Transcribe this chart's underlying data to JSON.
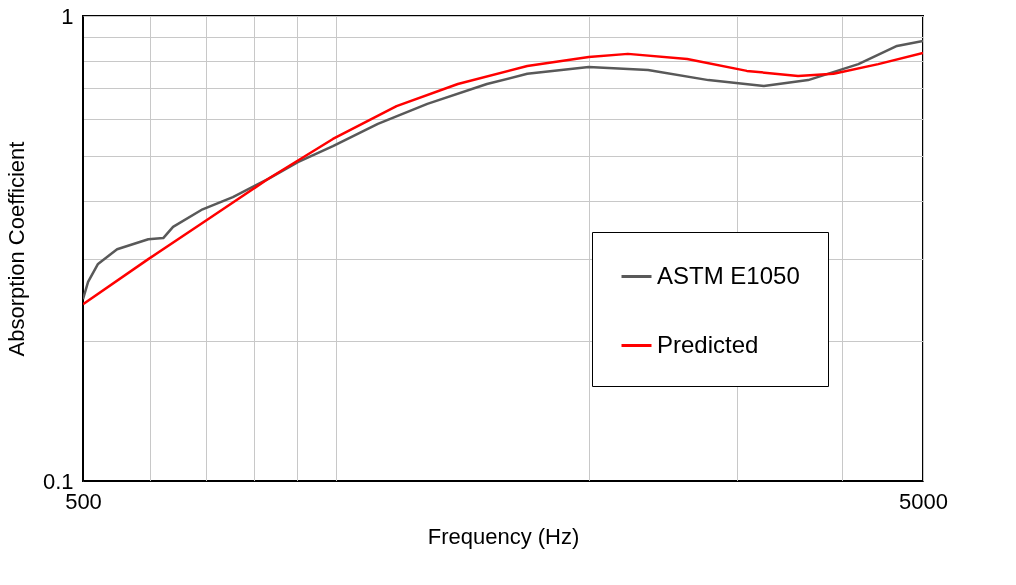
{
  "chart_data": {
    "type": "line",
    "xlabel": "Frequency (Hz)",
    "ylabel": "Absorption Coefficient",
    "log": "xy",
    "grid": true,
    "legend": "bottom right",
    "line_style": "solid",
    "marker": "none",
    "xlim": [
      500,
      5000
    ],
    "ylim": [
      0.1,
      1
    ],
    "xticks": [
      500,
      {
        "value": 600,
        "label": null
      },
      {
        "value": 700,
        "label": null
      },
      {
        "value": 800,
        "label": null
      },
      {
        "value": 900,
        "label": null
      },
      {
        "value": 1000,
        "label": null
      },
      {
        "value": 2000,
        "label": null
      },
      {
        "value": 3000,
        "label": null
      },
      {
        "value": 4000,
        "label": null
      },
      5000
    ],
    "yticks": [
      0.1,
      {
        "value": 0.2,
        "label": null
      },
      {
        "value": 0.3,
        "label": null
      },
      {
        "value": 0.4,
        "label": null
      },
      {
        "value": 0.5,
        "label": null
      },
      {
        "value": 0.6,
        "label": null
      },
      {
        "value": 0.7,
        "label": null
      },
      {
        "value": 0.8,
        "label": null
      },
      {
        "value": 0.9,
        "label": null
      },
      1
    ],
    "series": [
      {
        "name": "ASTM E1050",
        "color": "#595959",
        "x": [
          500,
          507,
          521,
          549,
          598,
          623,
          640,
          694,
          754,
          830,
          901,
          992,
          1122,
          1285,
          1513,
          1690,
          2000,
          2353,
          2777,
          3232,
          3650,
          4188,
          4656,
          5000
        ],
        "values": [
          0.246,
          0.268,
          0.293,
          0.315,
          0.331,
          0.333,
          0.352,
          0.384,
          0.408,
          0.446,
          0.485,
          0.525,
          0.586,
          0.647,
          0.714,
          0.751,
          0.777,
          0.765,
          0.728,
          0.707,
          0.728,
          0.788,
          0.862,
          0.884
        ]
      },
      {
        "name": "Predicted",
        "color": "#ff0000",
        "x": [
          500,
          598,
          705,
          830,
          992,
          1181,
          1397,
          1690,
          2000,
          2227,
          2620,
          3085,
          3550,
          3913,
          4423,
          5000
        ],
        "values": [
          0.24,
          0.3,
          0.366,
          0.446,
          0.544,
          0.64,
          0.714,
          0.781,
          0.816,
          0.829,
          0.808,
          0.762,
          0.743,
          0.751,
          0.788,
          0.833
        ]
      }
    ]
  }
}
